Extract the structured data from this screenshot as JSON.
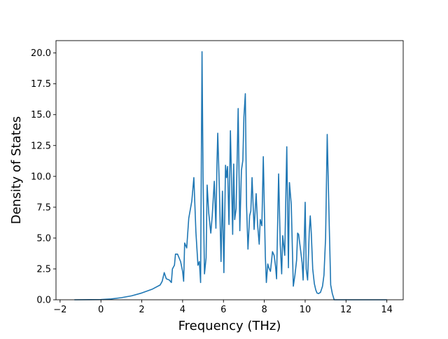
{
  "chart_data": {
    "type": "line",
    "title": "",
    "xlabel": "Frequency (THz)",
    "ylabel": "Density of States",
    "xlim": [
      -2.2,
      14.8
    ],
    "ylim": [
      0,
      21
    ],
    "xticks": [
      -2,
      0,
      2,
      4,
      6,
      8,
      10,
      12,
      14
    ],
    "xtick_labels": [
      "−2",
      "0",
      "2",
      "4",
      "6",
      "8",
      "10",
      "12",
      "14"
    ],
    "yticks": [
      0,
      2.5,
      5,
      7.5,
      10,
      12.5,
      15,
      17.5,
      20
    ],
    "ytick_labels": [
      "0.0",
      "2.5",
      "5.0",
      "7.5",
      "10.0",
      "12.5",
      "15.0",
      "17.5",
      "20.0"
    ],
    "grid": false,
    "legend": "none",
    "line_color": "#1f77b4",
    "series": [
      {
        "x": [
          -1.3,
          -0.5,
          0,
          0.5,
          1.0,
          1.5,
          2.0,
          2.5,
          2.9,
          3.0,
          3.1,
          3.2,
          3.35,
          3.45,
          3.5,
          3.6,
          3.65,
          3.75,
          3.9,
          4.0,
          4.05,
          4.1,
          4.2,
          4.3,
          4.45,
          4.55,
          4.65,
          4.75,
          4.82,
          4.88,
          4.95,
          5.0,
          5.07,
          5.15,
          5.2,
          5.28,
          5.38,
          5.45,
          5.55,
          5.63,
          5.68,
          5.72,
          5.8,
          5.88,
          5.95,
          6.02,
          6.1,
          6.15,
          6.2,
          6.27,
          6.34,
          6.4,
          6.45,
          6.5,
          6.55,
          6.62,
          6.72,
          6.8,
          6.88,
          6.95,
          7.0,
          7.07,
          7.13,
          7.2,
          7.28,
          7.34,
          7.4,
          7.5,
          7.6,
          7.67,
          7.75,
          7.8,
          7.88,
          7.95,
          8.05,
          8.1,
          8.17,
          8.22,
          8.3,
          8.4,
          8.48,
          8.55,
          8.6,
          8.7,
          8.78,
          8.85,
          8.9,
          9.0,
          9.1,
          9.18,
          9.23,
          9.32,
          9.42,
          9.5,
          9.58,
          9.63,
          9.68,
          9.77,
          9.85,
          9.9,
          9.95,
          10.0,
          10.05,
          10.12,
          10.2,
          10.25,
          10.3,
          10.37,
          10.45,
          10.52,
          10.58,
          10.65,
          10.75,
          10.85,
          10.92,
          11.0,
          11.08,
          11.18,
          11.25,
          11.33,
          11.42,
          11.48,
          11.55,
          11.62,
          11.7,
          11.77,
          11.85,
          11.9,
          11.95,
          12.0,
          12.05,
          12.1,
          12.18,
          12.25,
          12.33,
          12.42,
          12.5,
          12.58,
          12.65,
          12.7,
          12.75,
          12.78,
          13.0,
          14.0
        ],
        "y": [
          0,
          0.01,
          0.02,
          0.07,
          0.17,
          0.32,
          0.55,
          0.85,
          1.2,
          1.5,
          2.2,
          1.7,
          1.6,
          1.4,
          2.5,
          2.8,
          3.7,
          3.7,
          3.1,
          2.3,
          1.5,
          4.6,
          4.2,
          6.6,
          8.0,
          9.9,
          5.5,
          2.8,
          3.1,
          1.4,
          20.1,
          10.0,
          2.1,
          3.4,
          9.3,
          7.0,
          5.4,
          6.8,
          9.6,
          5.8,
          10.9,
          13.5,
          9.0,
          3.1,
          8.8,
          2.2,
          10.9,
          9.9,
          10.8,
          6.1,
          13.7,
          9.3,
          5.3,
          11.0,
          6.5,
          7.4,
          15.5,
          5.6,
          10.5,
          11.3,
          14.8,
          16.7,
          7.6,
          4.1,
          6.8,
          7.2,
          9.9,
          5.7,
          8.6,
          6.1,
          4.5,
          6.5,
          6.0,
          11.6,
          3.5,
          1.4,
          2.9,
          2.6,
          2.3,
          3.9,
          3.6,
          2.7,
          1.7,
          10.2,
          4.5,
          2.1,
          5.2,
          3.6,
          12.4,
          2.6,
          9.5,
          7.7,
          1.1,
          2.0,
          3.2,
          5.4,
          5.3,
          4.1,
          3.0,
          1.6,
          4.4,
          7.9,
          2.5,
          1.6,
          5.5,
          6.8,
          5.4,
          2.5,
          1.3,
          0.8,
          0.55,
          0.5,
          0.6,
          1.1,
          2.0,
          5.0,
          13.4,
          6.0,
          1.2,
          0.5,
          0,
          0,
          0,
          0,
          0,
          0,
          0,
          0,
          0,
          0,
          0,
          0,
          0,
          0,
          0,
          0,
          0,
          0,
          0,
          0,
          0,
          0,
          0,
          0
        ]
      }
    ]
  }
}
